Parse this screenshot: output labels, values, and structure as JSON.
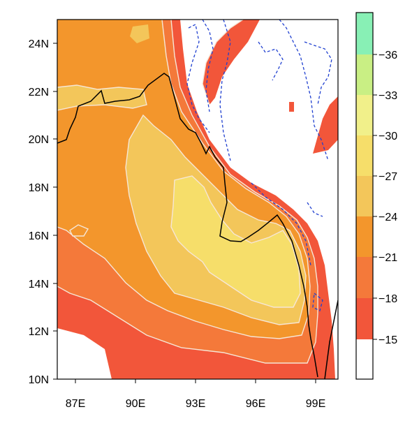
{
  "map": {
    "lat_axis": {
      "tick_labels": [
        "24N",
        "22N",
        "20N",
        "18N",
        "16N",
        "14N",
        "12N",
        "10N"
      ],
      "range": [
        10,
        25
      ]
    },
    "lon_axis": {
      "tick_labels": [
        "87E",
        "90E",
        "93E",
        "96E",
        "99E"
      ],
      "range": [
        85.8,
        100
      ]
    },
    "colorbar": {
      "labels": [
        "-36",
        "-33",
        "-30",
        "-27",
        "-24",
        "-21",
        "-18",
        "-15"
      ],
      "colors": [
        "#ffffff",
        "#f2563a",
        "#f4793a",
        "#f3962c",
        "#f3c65a",
        "#f6de6a",
        "#f1f08a",
        "#c9ef84",
        "#9fe98a",
        "#88f0b5"
      ]
    },
    "fill_colors": {
      "land": "#ffffff",
      "deep": "#f2563a",
      "mid": "#f4793a",
      "orange": "#f3962c",
      "light": "#f3c65a",
      "pale": "#f6de6a",
      "contour": "#f6e6d6",
      "dashed": "#2040d0",
      "coast": "#000000"
    }
  }
}
